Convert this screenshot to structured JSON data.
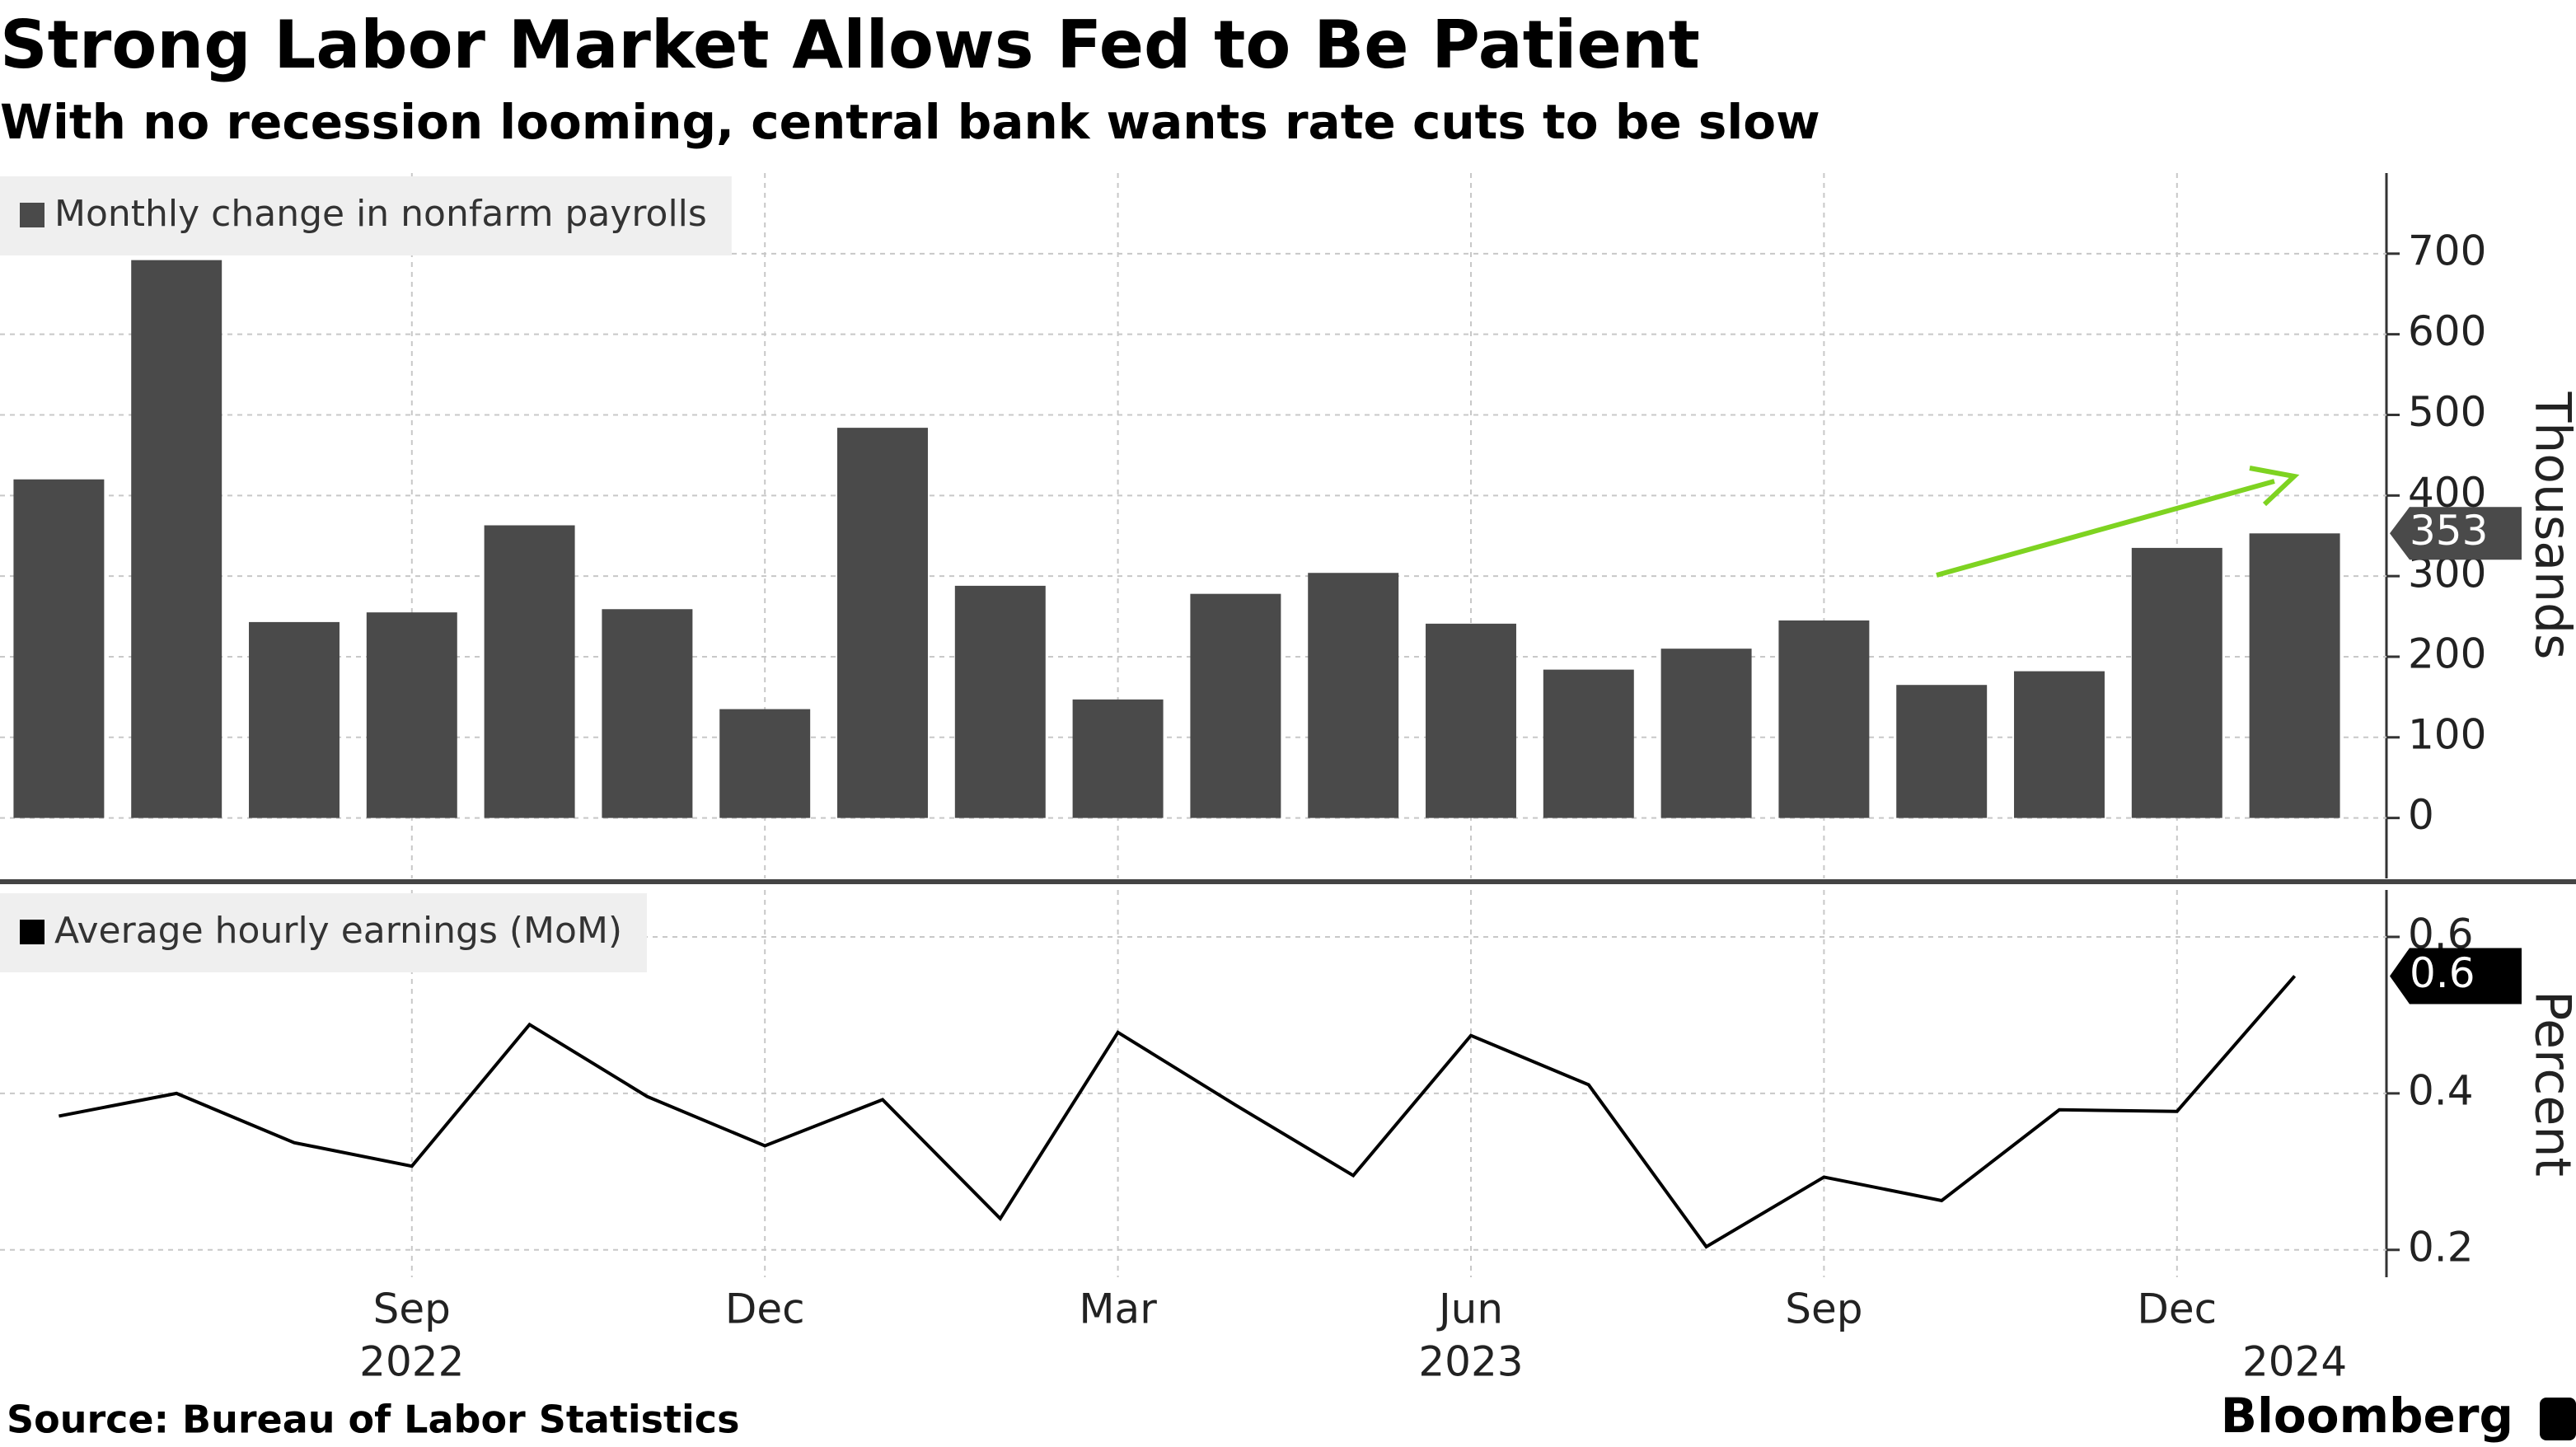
{
  "chart_data": [
    {
      "type": "bar",
      "title": "Strong Labor Market Allows Fed to Be Patient",
      "subtitle": "With no recession looming, central bank wants rate cuts to be slow",
      "source": "Source: Bureau of Labor Statistics",
      "brand": "Bloomberg",
      "categories": [
        null,
        null,
        null,
        "Sep",
        null,
        null,
        "Dec",
        null,
        null,
        "Mar",
        null,
        null,
        "Jun",
        null,
        null,
        "Sep",
        null,
        null,
        "Dec",
        null
      ],
      "year_labels": [
        null,
        null,
        null,
        "2022",
        null,
        null,
        null,
        null,
        null,
        null,
        null,
        null,
        "2023",
        null,
        null,
        null,
        null,
        null,
        null,
        "2024"
      ],
      "series": [
        {
          "name": "Monthly change in nonfarm payrolls",
          "color": "#4a4a4a",
          "values": [
            420,
            692,
            243,
            255,
            363,
            259,
            135,
            484,
            288,
            147,
            278,
            304,
            241,
            184,
            210,
            245,
            165,
            182,
            335,
            353
          ]
        }
      ],
      "ylabel": "Thousands",
      "ylim": [
        -75,
        800
      ],
      "yticks": [
        0,
        100,
        200,
        300,
        400,
        500,
        600,
        700
      ],
      "grid": true
    },
    {
      "type": "line",
      "series": [
        {
          "name": "Average hourly earnings (MoM)",
          "color": "#000000",
          "values": [
            0.371,
            0.4,
            0.337,
            0.307,
            0.488,
            0.396,
            0.333,
            0.392,
            0.24,
            0.478,
            0.385,
            0.295,
            0.474,
            0.411,
            0.204,
            0.293,
            0.263,
            0.379,
            0.377,
            0.55
          ],
          "value_labels": [
            null,
            null,
            null,
            null,
            null,
            null,
            null,
            null,
            null,
            null,
            null,
            null,
            null,
            null,
            null,
            null,
            null,
            null,
            null,
            "0.6"
          ]
        }
      ],
      "ylabel": "Percent",
      "ylim": [
        0.165,
        0.66
      ],
      "yticks": [
        0.2,
        0.4,
        0.6
      ],
      "grid": true
    }
  ]
}
